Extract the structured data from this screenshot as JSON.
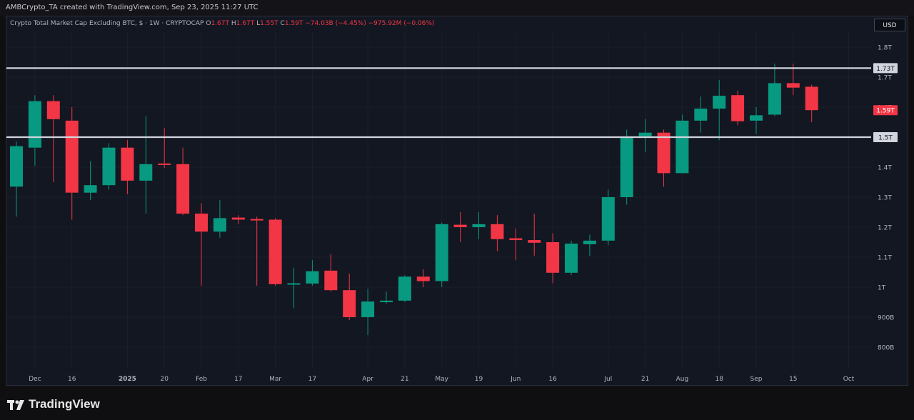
{
  "header": {
    "credit": "AMBCrypto_TA created with TradingView.com, Sep 23, 2025 11:27 UTC"
  },
  "symbol": {
    "name": "Crypto Total Market Cap Excluding BTC, $ · 1W · CRYPTOCAP",
    "o_label": "O",
    "o": "1.67T",
    "h_label": "H",
    "h": "1.67T",
    "l_label": "L",
    "l": "1.55T",
    "c_label": "C",
    "c": "1.59T",
    "change": "−74.03B (−4.45%)",
    "volume": "−975.92M (−0.06%)"
  },
  "currency_button": "USD",
  "brand": {
    "name": "TradingView",
    "icon": "tradingview-logo-icon"
  },
  "colors": {
    "up": "#089981",
    "down": "#f23645",
    "background": "#131722",
    "level_line": "#d1d4dc"
  },
  "chart_data": {
    "type": "candlestick",
    "timeframe": "1W",
    "y_unit": "USD",
    "ylim": [
      750000000000,
      1860000000000
    ],
    "y_ticks": [
      {
        "value": 800000000000,
        "label": "800B"
      },
      {
        "value": 900000000000,
        "label": "900B"
      },
      {
        "value": 1000000000000,
        "label": "1T"
      },
      {
        "value": 1100000000000,
        "label": "1.1T"
      },
      {
        "value": 1200000000000,
        "label": "1.2T"
      },
      {
        "value": 1300000000000,
        "label": "1.3T"
      },
      {
        "value": 1400000000000,
        "label": "1.4T"
      },
      {
        "value": 1500000000000,
        "label": "1.5T"
      },
      {
        "value": 1600000000000,
        "label": "1.6T"
      },
      {
        "value": 1700000000000,
        "label": "1.7T"
      },
      {
        "value": 1800000000000,
        "label": "1.8T"
      }
    ],
    "x_ticks": [
      {
        "bar": 1,
        "label": "Dec",
        "bold": false
      },
      {
        "bar": 3,
        "label": "16",
        "bold": false
      },
      {
        "bar": 6,
        "label": "2025",
        "bold": true
      },
      {
        "bar": 8,
        "label": "20",
        "bold": false
      },
      {
        "bar": 10,
        "label": "Feb",
        "bold": false
      },
      {
        "bar": 12,
        "label": "17",
        "bold": false
      },
      {
        "bar": 14,
        "label": "Mar",
        "bold": false
      },
      {
        "bar": 16,
        "label": "17",
        "bold": false
      },
      {
        "bar": 19,
        "label": "Apr",
        "bold": false
      },
      {
        "bar": 21,
        "label": "21",
        "bold": false
      },
      {
        "bar": 23,
        "label": "May",
        "bold": false
      },
      {
        "bar": 25,
        "label": "19",
        "bold": false
      },
      {
        "bar": 27,
        "label": "Jun",
        "bold": false
      },
      {
        "bar": 29,
        "label": "16",
        "bold": false
      },
      {
        "bar": 32,
        "label": "Jul",
        "bold": false
      },
      {
        "bar": 34,
        "label": "21",
        "bold": false
      },
      {
        "bar": 36,
        "label": "Aug",
        "bold": false
      },
      {
        "bar": 38,
        "label": "18",
        "bold": false
      },
      {
        "bar": 40,
        "label": "Sep",
        "bold": false
      },
      {
        "bar": 42,
        "label": "15",
        "bold": false
      },
      {
        "bar": 45,
        "label": "Oct",
        "bold": false
      }
    ],
    "horizontal_levels": [
      {
        "value": 1730000000000,
        "label": "1.73T"
      },
      {
        "value": 1500000000000,
        "label": "1.5T"
      }
    ],
    "last_price": {
      "value": 1590000000000,
      "label": "1.59T"
    },
    "candles": [
      {
        "o": 1335000000000,
        "h": 1485000000000,
        "l": 1235000000000,
        "c": 1470000000000
      },
      {
        "o": 1465000000000,
        "h": 1640000000000,
        "l": 1405000000000,
        "c": 1620000000000
      },
      {
        "o": 1620000000000,
        "h": 1640000000000,
        "l": 1350000000000,
        "c": 1560000000000
      },
      {
        "o": 1555000000000,
        "h": 1600000000000,
        "l": 1225000000000,
        "c": 1315000000000
      },
      {
        "o": 1315000000000,
        "h": 1420000000000,
        "l": 1290000000000,
        "c": 1340000000000
      },
      {
        "o": 1340000000000,
        "h": 1480000000000,
        "l": 1325000000000,
        "c": 1465000000000
      },
      {
        "o": 1465000000000,
        "h": 1490000000000,
        "l": 1310000000000,
        "c": 1355000000000
      },
      {
        "o": 1355000000000,
        "h": 1570000000000,
        "l": 1245000000000,
        "c": 1410000000000
      },
      {
        "o": 1412000000000,
        "h": 1530000000000,
        "l": 1398000000000,
        "c": 1410000000000
      },
      {
        "o": 1410000000000,
        "h": 1465000000000,
        "l": 1240000000000,
        "c": 1245000000000
      },
      {
        "o": 1245000000000,
        "h": 1280000000000,
        "l": 1005000000000,
        "c": 1185000000000
      },
      {
        "o": 1185000000000,
        "h": 1290000000000,
        "l": 1165000000000,
        "c": 1230000000000
      },
      {
        "o": 1232000000000,
        "h": 1240000000000,
        "l": 1210000000000,
        "c": 1225000000000
      },
      {
        "o": 1227000000000,
        "h": 1235000000000,
        "l": 1005000000000,
        "c": 1223000000000
      },
      {
        "o": 1225000000000,
        "h": 1230000000000,
        "l": 1005000000000,
        "c": 1010000000000
      },
      {
        "o": 1010000000000,
        "h": 1065000000000,
        "l": 930000000000,
        "c": 1013000000000
      },
      {
        "o": 1012000000000,
        "h": 1090000000000,
        "l": 1005000000000,
        "c": 1053000000000
      },
      {
        "o": 1055000000000,
        "h": 1110000000000,
        "l": 985000000000,
        "c": 990000000000
      },
      {
        "o": 990000000000,
        "h": 1045000000000,
        "l": 890000000000,
        "c": 900000000000
      },
      {
        "o": 900000000000,
        "h": 995000000000,
        "l": 840000000000,
        "c": 952000000000
      },
      {
        "o": 950000000000,
        "h": 985000000000,
        "l": 945000000000,
        "c": 955000000000
      },
      {
        "o": 955000000000,
        "h": 1040000000000,
        "l": 950000000000,
        "c": 1035000000000
      },
      {
        "o": 1035000000000,
        "h": 1060000000000,
        "l": 1000000000000,
        "c": 1020000000000
      },
      {
        "o": 1020000000000,
        "h": 1215000000000,
        "l": 1000000000000,
        "c": 1210000000000
      },
      {
        "o": 1208000000000,
        "h": 1250000000000,
        "l": 1150000000000,
        "c": 1200000000000
      },
      {
        "o": 1200000000000,
        "h": 1250000000000,
        "l": 1160000000000,
        "c": 1210000000000
      },
      {
        "o": 1210000000000,
        "h": 1240000000000,
        "l": 1120000000000,
        "c": 1160000000000
      },
      {
        "o": 1163000000000,
        "h": 1195000000000,
        "l": 1090000000000,
        "c": 1157000000000
      },
      {
        "o": 1157000000000,
        "h": 1245000000000,
        "l": 1105000000000,
        "c": 1148000000000
      },
      {
        "o": 1150000000000,
        "h": 1180000000000,
        "l": 1013000000000,
        "c": 1048000000000
      },
      {
        "o": 1048000000000,
        "h": 1155000000000,
        "l": 1040000000000,
        "c": 1145000000000
      },
      {
        "o": 1143000000000,
        "h": 1175000000000,
        "l": 1105000000000,
        "c": 1155000000000
      },
      {
        "o": 1155000000000,
        "h": 1325000000000,
        "l": 1140000000000,
        "c": 1300000000000
      },
      {
        "o": 1300000000000,
        "h": 1525000000000,
        "l": 1275000000000,
        "c": 1500000000000
      },
      {
        "o": 1503000000000,
        "h": 1560000000000,
        "l": 1450000000000,
        "c": 1515000000000
      },
      {
        "o": 1515000000000,
        "h": 1525000000000,
        "l": 1335000000000,
        "c": 1380000000000
      },
      {
        "o": 1380000000000,
        "h": 1575000000000,
        "l": 1380000000000,
        "c": 1555000000000
      },
      {
        "o": 1555000000000,
        "h": 1635000000000,
        "l": 1515000000000,
        "c": 1595000000000
      },
      {
        "o": 1595000000000,
        "h": 1690000000000,
        "l": 1490000000000,
        "c": 1638000000000
      },
      {
        "o": 1640000000000,
        "h": 1655000000000,
        "l": 1540000000000,
        "c": 1553000000000
      },
      {
        "o": 1555000000000,
        "h": 1600000000000,
        "l": 1510000000000,
        "c": 1573000000000
      },
      {
        "o": 1575000000000,
        "h": 1745000000000,
        "l": 1570000000000,
        "c": 1680000000000
      },
      {
        "o": 1680000000000,
        "h": 1745000000000,
        "l": 1640000000000,
        "c": 1665000000000
      },
      {
        "o": 1668000000000,
        "h": 1675000000000,
        "l": 1550000000000,
        "c": 1590000000000
      }
    ]
  }
}
